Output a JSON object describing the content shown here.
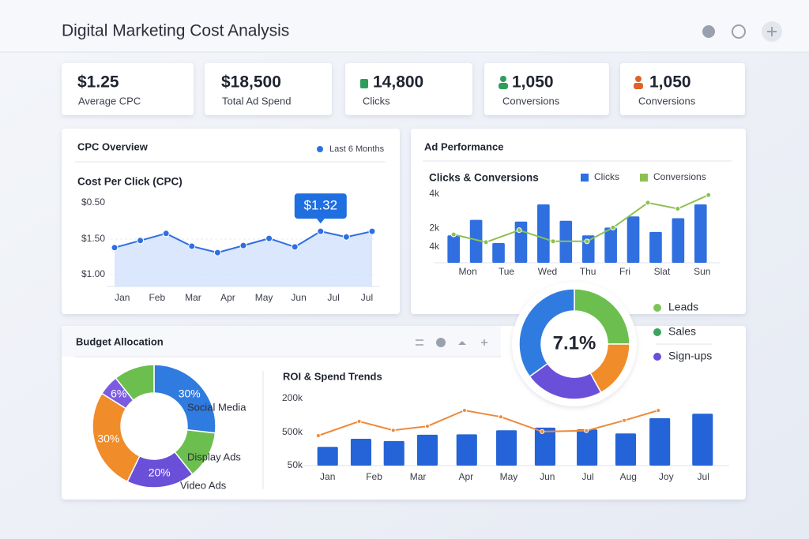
{
  "header": {
    "title": "Digital Marketing Cost Analysis"
  },
  "kpis": [
    {
      "value": "$1.25",
      "label": "Average CPC"
    },
    {
      "value": "$18,500",
      "label": "Total Ad Spend"
    },
    {
      "value": "14,800",
      "label": "Clicks"
    },
    {
      "value": "1,050",
      "label": "Conversions"
    },
    {
      "value": "1,050",
      "label": "Conversions"
    }
  ],
  "panels": {
    "budget_title": "Budget Allocation"
  },
  "chart_data": [
    {
      "type": "line",
      "title": "CPC Overview",
      "subtitle": "Cost Per Click (CPC)",
      "xlim": [
        0,
        10
      ],
      "xticks": [
        {
          "value": 0.3,
          "label": "Jan"
        },
        {
          "value": 1.65,
          "label": "Feb"
        },
        {
          "value": 3.05,
          "label": "Mar"
        },
        {
          "value": 4.4,
          "label": "Apr"
        },
        {
          "value": 5.8,
          "label": "May"
        },
        {
          "value": 7.15,
          "label": "Jun"
        },
        {
          "value": 8.5,
          "label": "Jul"
        },
        {
          "value": 9.8,
          "label": "Jul"
        }
      ],
      "ylim": [
        1,
        2
      ],
      "yticks": [
        {
          "value": 1,
          "label": "$1.00"
        },
        {
          "value": 1.5,
          "label": "$1.50"
        }
      ],
      "y_top_label": "$0.50",
      "grid": true,
      "tooltip": "$1.32",
      "series": [
        {
          "name": "Last 6 Months",
          "color": "#2f6fe0",
          "x": [
            0,
            1,
            2,
            3,
            4,
            5,
            6,
            7,
            8,
            9,
            10
          ],
          "values": [
            1.38,
            1.48,
            1.58,
            1.4,
            1.31,
            1.41,
            1.51,
            1.39,
            1.61,
            1.53,
            1.61
          ]
        }
      ]
    },
    {
      "type": "bar_line",
      "title": "Ad Performance",
      "subtitle": "Clicks & Conversions",
      "xlim": [
        -0.5,
        11.5
      ],
      "xticks": [
        {
          "value": 0.63,
          "label": "Mon"
        },
        {
          "value": 2.35,
          "label": "Tue"
        },
        {
          "value": 4.18,
          "label": "Wed"
        },
        {
          "value": 5.98,
          "label": "Thu"
        },
        {
          "value": 7.63,
          "label": "Fri"
        },
        {
          "value": 9.28,
          "label": "Slat"
        },
        {
          "value": 11.07,
          "label": "Sun"
        }
      ],
      "ylim": [
        0,
        4000
      ],
      "yticks": [
        {
          "value": 2000,
          "label": "2k"
        },
        {
          "value": 4000,
          "label": "4k"
        }
      ],
      "y_bottom_label": "4k",
      "series": [
        {
          "name": "Clicks",
          "type": "bar",
          "color": "#2f6fe0",
          "x": [
            0,
            1,
            2,
            3,
            4,
            5,
            6,
            7,
            8,
            9,
            10,
            11
          ],
          "values": [
            1600,
            2500,
            1150,
            2400,
            3400,
            2450,
            1600,
            2050,
            2700,
            1800,
            2600,
            3400
          ]
        },
        {
          "name": "Conversions",
          "type": "line",
          "color": "#8cc152",
          "x": [
            0,
            1.44,
            2.92,
            4.43,
            5.94,
            7.1,
            8.65,
            9.98,
            11.35
          ],
          "values": [
            1650,
            1200,
            1900,
            1250,
            1250,
            2050,
            3500,
            3150,
            3950
          ]
        }
      ]
    },
    {
      "type": "donut",
      "categories": [
        "Leads",
        "Sales",
        "Sign-ups",
        null
      ],
      "values": [
        25,
        17,
        23,
        35
      ],
      "colors": [
        "#6cbf4f",
        "#f08c2a",
        "#6a4fd8",
        "#2f7be0"
      ],
      "legend_colors": [
        "#7cc45a",
        "#3ea35b",
        "#6a4fd8"
      ],
      "center_label": "7.1%"
    },
    {
      "type": "donut",
      "categories": [
        "Social Media",
        "Display Ads",
        "Video Ads",
        null,
        null,
        null
      ],
      "values": [
        30,
        14,
        20,
        30,
        6,
        12
      ],
      "value_labels": [
        "30%",
        null,
        "20%",
        "30%",
        "6%",
        null
      ],
      "colors": [
        "#2f7be0",
        "#6cbf4f",
        "#6a4fd8",
        "#f08c2a",
        "#7b5ce0",
        "#6cbf4f"
      ]
    },
    {
      "type": "bar_line",
      "title": "ROI & Spend Trends",
      "xlim": [
        -0.5,
        10.5
      ],
      "xticks": [
        {
          "value": 0,
          "label": "Jan"
        },
        {
          "value": 1.24,
          "label": "Feb"
        },
        {
          "value": 2.41,
          "label": "Mar"
        },
        {
          "value": 3.69,
          "label": "Apr"
        },
        {
          "value": 4.83,
          "label": "May"
        },
        {
          "value": 5.86,
          "label": "Jun"
        },
        {
          "value": 6.94,
          "label": "Jul"
        },
        {
          "value": 8.02,
          "label": "Aug"
        },
        {
          "value": 9.03,
          "label": "Joy"
        },
        {
          "value": 10.02,
          "label": "Jul"
        }
      ],
      "ylim": [
        50000,
        200000
      ],
      "yticks": [
        {
          "value": 50000,
          "label": "50k"
        },
        {
          "value": 200000,
          "label": "200k"
        }
      ],
      "y_mid_label": "500k",
      "series": [
        {
          "type": "bar",
          "color": "#2563d9",
          "x": [
            0,
            0.89,
            1.77,
            2.66,
            3.71,
            4.77,
            5.8,
            6.92,
            7.95,
            8.86,
            10
          ],
          "values": [
            92000,
            110000,
            105000,
            119000,
            120000,
            129000,
            135000,
            131000,
            122000,
            156000,
            166000
          ]
        },
        {
          "type": "line",
          "color": "#ee8a3a",
          "x": [
            -0.25,
            0.84,
            1.75,
            2.66,
            3.65,
            4.62,
            5.72,
            6.9,
            7.91,
            8.82
          ],
          "values": [
            117000,
            149000,
            129000,
            138000,
            173500,
            159000,
            126000,
            128000,
            151000,
            173500
          ]
        }
      ]
    }
  ]
}
